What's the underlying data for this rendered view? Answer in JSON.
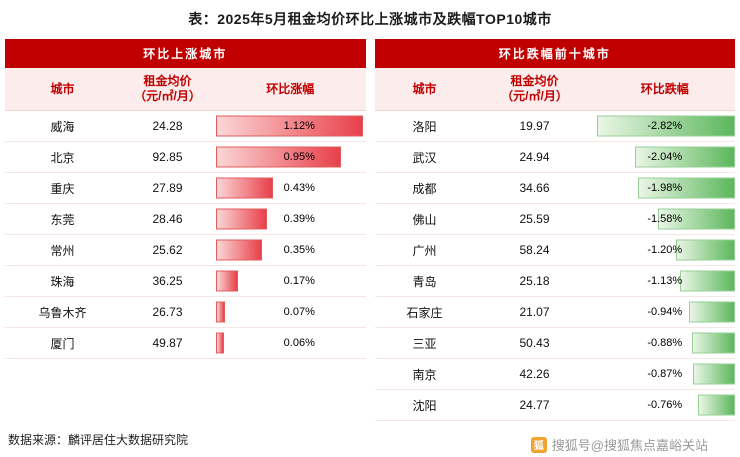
{
  "title": "表：2025年5月租金均价环比上涨城市及跌幅TOP10城市",
  "source": "数据来源：麟评居住大数据研究院",
  "watermark": {
    "logo_glyph": "狐",
    "text": "搜狐号@搜狐焦点嘉峪关站"
  },
  "colors": {
    "header_red": "#c00000",
    "col_header_bg": "#fcecec",
    "up_bar": "#e8404a",
    "down_bar": "#5cb75c"
  },
  "left": {
    "panel_title": "环比上涨城市",
    "col_city": "城市",
    "col_price": "租金均价\n（元/㎡/月）",
    "col_pct": "环比涨幅",
    "max": 1.12,
    "rows": [
      {
        "city": "威海",
        "price": "24.28",
        "pct": "1.12%",
        "value": 1.12
      },
      {
        "city": "北京",
        "price": "92.85",
        "pct": "0.95%",
        "value": 0.95
      },
      {
        "city": "重庆",
        "price": "27.89",
        "pct": "0.43%",
        "value": 0.43
      },
      {
        "city": "东莞",
        "price": "28.46",
        "pct": "0.39%",
        "value": 0.39
      },
      {
        "city": "常州",
        "price": "25.62",
        "pct": "0.35%",
        "value": 0.35
      },
      {
        "city": "珠海",
        "price": "36.25",
        "pct": "0.17%",
        "value": 0.17
      },
      {
        "city": "乌鲁木齐",
        "price": "26.73",
        "pct": "0.07%",
        "value": 0.07
      },
      {
        "city": "厦门",
        "price": "49.87",
        "pct": "0.06%",
        "value": 0.06
      }
    ]
  },
  "right": {
    "panel_title": "环比跌幅前十城市",
    "col_city": "城市",
    "col_price": "租金均价\n（元/㎡/月）",
    "col_pct": "环比跌幅",
    "max": 2.82,
    "rows": [
      {
        "city": "洛阳",
        "price": "19.97",
        "pct": "-2.82%",
        "value": -2.82
      },
      {
        "city": "武汉",
        "price": "24.94",
        "pct": "-2.04%",
        "value": -2.04
      },
      {
        "city": "成都",
        "price": "34.66",
        "pct": "-1.98%",
        "value": -1.98
      },
      {
        "city": "佛山",
        "price": "25.59",
        "pct": "-1.58%",
        "value": -1.58
      },
      {
        "city": "广州",
        "price": "58.24",
        "pct": "-1.20%",
        "value": -1.2
      },
      {
        "city": "青岛",
        "price": "25.18",
        "pct": "-1.13%",
        "value": -1.13
      },
      {
        "city": "石家庄",
        "price": "21.07",
        "pct": "-0.94%",
        "value": -0.94
      },
      {
        "city": "三亚",
        "price": "50.43",
        "pct": "-0.88%",
        "value": -0.88
      },
      {
        "city": "南京",
        "price": "42.26",
        "pct": "-0.87%",
        "value": -0.87
      },
      {
        "city": "沈阳",
        "price": "24.77",
        "pct": "-0.76%",
        "value": -0.76
      }
    ]
  },
  "chart_data": [
    {
      "type": "bar",
      "orientation": "horizontal",
      "title": "环比上涨城市",
      "categories": [
        "威海",
        "北京",
        "重庆",
        "东莞",
        "常州",
        "珠海",
        "乌鲁木齐",
        "厦门"
      ],
      "series": [
        {
          "name": "租金均价（元/㎡/月）",
          "values": [
            24.28,
            92.85,
            27.89,
            28.46,
            25.62,
            36.25,
            26.73,
            49.87
          ]
        },
        {
          "name": "环比涨幅(%)",
          "values": [
            1.12,
            0.95,
            0.43,
            0.39,
            0.35,
            0.17,
            0.07,
            0.06
          ]
        }
      ],
      "xlim": [
        0,
        1.12
      ],
      "bar_color": "#e8404a",
      "legend_position": "none",
      "grid": false
    },
    {
      "type": "bar",
      "orientation": "horizontal",
      "title": "环比跌幅前十城市",
      "categories": [
        "洛阳",
        "武汉",
        "成都",
        "佛山",
        "广州",
        "青岛",
        "石家庄",
        "三亚",
        "南京",
        "沈阳"
      ],
      "series": [
        {
          "name": "租金均价（元/㎡/月）",
          "values": [
            19.97,
            24.94,
            34.66,
            25.59,
            58.24,
            25.18,
            21.07,
            50.43,
            42.26,
            24.77
          ]
        },
        {
          "name": "环比跌幅(%)",
          "values": [
            -2.82,
            -2.04,
            -1.98,
            -1.58,
            -1.2,
            -1.13,
            -0.94,
            -0.88,
            -0.87,
            -0.76
          ]
        }
      ],
      "xlim": [
        -2.82,
        0
      ],
      "bar_color": "#5cb75c",
      "legend_position": "none",
      "grid": false
    }
  ]
}
